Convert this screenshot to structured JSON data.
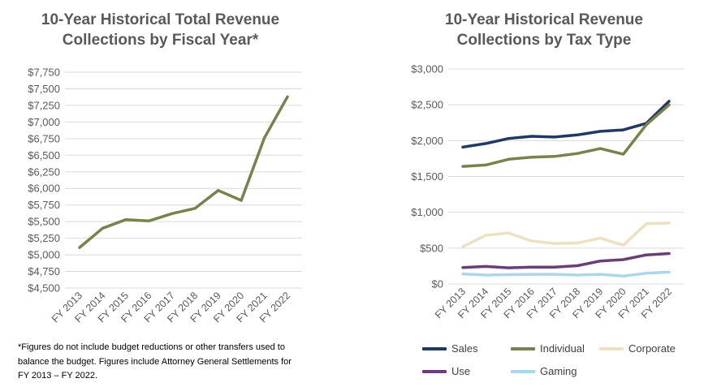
{
  "footnote": "*Figures do not include budget reductions or other transfers used to balance the budget. Figures include Attorney General Settlements for FY 2013 – FY 2022.",
  "chart_data": [
    {
      "type": "line",
      "title": "10-Year Historical Total Revenue\nCollections by Fiscal Year*",
      "categories": [
        "FY 2013",
        "FY 2014",
        "FY 2015",
        "FY 2016",
        "FY 2017",
        "FY 2018",
        "FY 2019",
        "FY 2020",
        "FY 2021",
        "FY 2022"
      ],
      "ylim": [
        4500,
        7750
      ],
      "yticks": [
        4500,
        4750,
        5000,
        5250,
        5500,
        5750,
        6000,
        6250,
        6500,
        6750,
        7000,
        7250,
        7500,
        7750
      ],
      "ytick_labels": [
        "$4,500",
        "$4,750",
        "$5,000",
        "$5,250",
        "$5,500",
        "$5,750",
        "$6,000",
        "$6,250",
        "$6,500",
        "$6,750",
        "$7,000",
        "$7,250",
        "$7,500",
        "$7,750"
      ],
      "grid": true,
      "series": [
        {
          "values": [
            5110,
            5400,
            5530,
            5510,
            5620,
            5700,
            5970,
            5820,
            6760,
            7380
          ],
          "color": "#76844b"
        }
      ]
    },
    {
      "type": "line",
      "title": "10-Year Historical Revenue\nCollections by Tax Type",
      "categories": [
        "FY 2013",
        "FY 2014",
        "FY 2015",
        "FY 2016",
        "FY 2017",
        "FY 2018",
        "FY 2019",
        "FY 2020",
        "FY 2021",
        "FY 2022"
      ],
      "ylim": [
        0,
        3000
      ],
      "yticks": [
        0,
        500,
        1000,
        1500,
        2000,
        2500,
        3000
      ],
      "ytick_labels": [
        "$0",
        "$500",
        "$1,000",
        "$1,500",
        "$2,000",
        "$2,500",
        "$3,000"
      ],
      "grid": true,
      "legend": "bottom",
      "series": [
        {
          "name": "Sales",
          "color": "#1f3864",
          "values": [
            1910,
            1960,
            2030,
            2060,
            2050,
            2080,
            2130,
            2150,
            2240,
            2550
          ]
        },
        {
          "name": "Individual",
          "color": "#76844b",
          "values": [
            1640,
            1660,
            1740,
            1770,
            1780,
            1820,
            1890,
            1810,
            2220,
            2500
          ]
        },
        {
          "name": "Corporate",
          "color": "#ece1c0",
          "values": [
            520,
            680,
            710,
            600,
            565,
            570,
            640,
            540,
            840,
            850
          ]
        },
        {
          "name": "Use",
          "color": "#6a3f78",
          "values": [
            230,
            245,
            225,
            235,
            235,
            255,
            320,
            340,
            405,
            425
          ]
        },
        {
          "name": "Gaming",
          "color": "#a8d8ea",
          "values": [
            140,
            125,
            130,
            135,
            135,
            125,
            135,
            110,
            150,
            165
          ]
        }
      ]
    }
  ]
}
